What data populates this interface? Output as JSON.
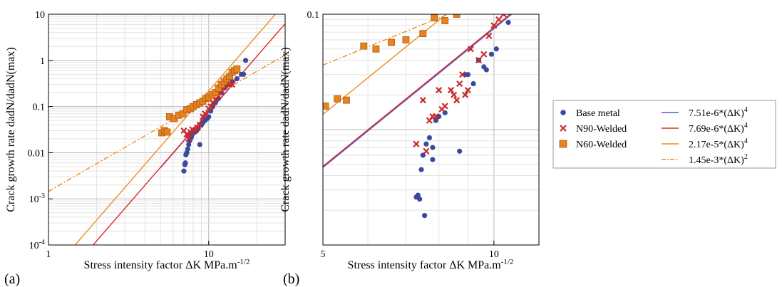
{
  "figure": {
    "panel_a_label": "(a)",
    "panel_b_label": "(b)"
  },
  "legend": {
    "entries": [
      {
        "label": "Base metal",
        "marker": "circle",
        "color": "#3a4aa0"
      },
      {
        "label": "N90-Welded",
        "marker": "x",
        "color": "#c8282a"
      },
      {
        "label": "N60-Welded",
        "marker": "square",
        "color": "#e8821e"
      }
    ],
    "lines": [
      {
        "prefix": "7.51e-6*(ΔK)",
        "exp": "4",
        "color": "#5a5ac8",
        "dash": false
      },
      {
        "prefix": "7.69e-6*(ΔK)",
        "exp": "4",
        "color": "#dc2828",
        "dash": false
      },
      {
        "prefix": "2.17e-5*(ΔK)",
        "exp": "4",
        "color": "#f08c1e",
        "dash": false
      },
      {
        "prefix": "1.45e-3*(ΔK)",
        "exp": "2",
        "color": "#f08c1e",
        "dash": true
      }
    ]
  },
  "chart_data": [
    {
      "type": "scatter",
      "panel": "a",
      "xlabel": "Stress intensity factor ΔK MPa.m",
      "xlabel_sup": "-1/2",
      "ylabel": "Crack growth rate dadN/dadN(max)",
      "x_scale": "log",
      "y_scale": "log",
      "xlim": [
        1,
        30
      ],
      "ylim": [
        0.0001,
        10
      ],
      "x_ticks": [
        {
          "v": 1,
          "label": "1"
        },
        {
          "v": 10,
          "label": "10"
        }
      ],
      "y_ticks": [
        {
          "v": 10,
          "label": "10"
        },
        {
          "v": 1,
          "label": "1"
        },
        {
          "v": 0.1,
          "label": "0.1"
        },
        {
          "v": 0.01,
          "label": "0.01"
        },
        {
          "v": 0.001,
          "label": "10",
          "sup": "-3"
        },
        {
          "v": 0.0001,
          "label": "10",
          "sup": "-4"
        }
      ],
      "grid": true,
      "series": [
        {
          "name": "Base metal",
          "marker": "circle",
          "color": "#3a4aa0",
          "points": [
            [
              7.0,
              0.004
            ],
            [
              7.1,
              0.0055
            ],
            [
              7.15,
              0.006
            ],
            [
              7.2,
              0.009
            ],
            [
              7.3,
              0.01
            ],
            [
              7.4,
              0.012
            ],
            [
              7.5,
              0.015
            ],
            [
              7.6,
              0.018
            ],
            [
              7.7,
              0.02
            ],
            [
              7.8,
              0.022
            ],
            [
              7.9,
              0.025
            ],
            [
              8.2,
              0.028
            ],
            [
              8.4,
              0.03
            ],
            [
              8.6,
              0.033
            ],
            [
              8.8,
              0.015
            ],
            [
              9.0,
              0.04
            ],
            [
              9.2,
              0.045
            ],
            [
              9.5,
              0.05
            ],
            [
              9.8,
              0.055
            ],
            [
              10.0,
              0.06
            ],
            [
              10.3,
              0.08
            ],
            [
              10.6,
              0.1
            ],
            [
              11.0,
              0.12
            ],
            [
              11.5,
              0.15
            ],
            [
              12.0,
              0.2
            ],
            [
              12.5,
              0.25
            ],
            [
              13.0,
              0.3
            ],
            [
              14.0,
              0.35
            ],
            [
              15.0,
              0.4
            ],
            [
              16.0,
              0.5
            ],
            [
              16.5,
              0.5
            ],
            [
              17.0,
              1.0
            ]
          ]
        },
        {
          "name": "N90-Welded",
          "marker": "x",
          "color": "#c8282a",
          "points": [
            [
              7.0,
              0.03
            ],
            [
              7.3,
              0.025
            ],
            [
              7.5,
              0.02
            ],
            [
              7.7,
              0.028
            ],
            [
              7.9,
              0.032
            ],
            [
              8.2,
              0.03
            ],
            [
              8.5,
              0.035
            ],
            [
              8.8,
              0.04
            ],
            [
              9.2,
              0.06
            ],
            [
              9.5,
              0.07
            ],
            [
              10.0,
              0.09
            ],
            [
              10.3,
              0.1
            ],
            [
              10.6,
              0.12
            ],
            [
              11.0,
              0.14
            ],
            [
              11.5,
              0.17
            ],
            [
              12.0,
              0.22
            ],
            [
              12.5,
              0.28
            ],
            [
              13.0,
              0.32
            ],
            [
              13.5,
              0.3
            ],
            [
              14.0,
              0.3
            ]
          ]
        },
        {
          "name": "N60-Welded",
          "marker": "square",
          "color": "#e8821e",
          "points": [
            [
              5.1,
              0.027
            ],
            [
              5.3,
              0.03
            ],
            [
              5.5,
              0.028
            ],
            [
              5.7,
              0.06
            ],
            [
              6.1,
              0.055
            ],
            [
              6.5,
              0.065
            ],
            [
              6.9,
              0.07
            ],
            [
              7.3,
              0.085
            ],
            [
              7.7,
              0.09
            ],
            [
              8.0,
              0.1
            ],
            [
              8.4,
              0.11
            ],
            [
              8.8,
              0.12
            ],
            [
              9.2,
              0.13
            ],
            [
              9.6,
              0.15
            ],
            [
              10.0,
              0.16
            ],
            [
              10.5,
              0.18
            ],
            [
              11.0,
              0.2
            ],
            [
              11.5,
              0.25
            ],
            [
              12.0,
              0.3
            ],
            [
              12.5,
              0.35
            ],
            [
              13.0,
              0.4
            ],
            [
              13.5,
              0.45
            ],
            [
              14.0,
              0.55
            ],
            [
              14.5,
              0.6
            ],
            [
              15.0,
              0.65
            ]
          ]
        }
      ],
      "fits": [
        {
          "name": "7.51e-6*(ΔK)^4",
          "coef": 7.51e-06,
          "exp": 4,
          "color": "#5a5ac8",
          "dash": false,
          "xrange": [
            5.0,
            13.5
          ]
        },
        {
          "name": "7.69e-6*(ΔK)^4",
          "coef": 7.69e-06,
          "exp": 4,
          "color": "#dc2828",
          "dash": false,
          "xrange": [
            1,
            30
          ]
        },
        {
          "name": "2.17e-5*(ΔK)^4",
          "coef": 2.17e-05,
          "exp": 4,
          "color": "#f08c1e",
          "dash": false,
          "xrange": [
            1,
            30
          ]
        },
        {
          "name": "1.45e-3*(ΔK)^2",
          "coef": 0.00145,
          "exp": 2,
          "color": "#f08c1e",
          "dash": true,
          "xrange": [
            1,
            30
          ]
        }
      ]
    },
    {
      "type": "scatter",
      "panel": "b",
      "xlabel": "Stress intensity factor ΔK MPa.m",
      "xlabel_sup": "-1/2",
      "ylabel": "Crack growth rate dadN/dadN(max)",
      "x_scale": "log",
      "y_scale": "log",
      "xlim": [
        5,
        12
      ],
      "ylim": [
        0.001,
        0.1
      ],
      "x_ticks": [
        {
          "v": 5,
          "label": "5"
        },
        {
          "v": 10,
          "label": "10"
        }
      ],
      "y_ticks": [
        {
          "v": 0.1,
          "label": "0.1"
        }
      ],
      "grid": true,
      "series": [
        {
          "name": "Base metal",
          "marker": "circle",
          "color": "#3a4aa0",
          "points": [
            [
              7.3,
              0.0026
            ],
            [
              7.35,
              0.0027
            ],
            [
              7.4,
              0.0025
            ],
            [
              7.45,
              0.0045
            ],
            [
              7.5,
              0.006
            ],
            [
              7.55,
              0.0018
            ],
            [
              7.6,
              0.0075
            ],
            [
              7.7,
              0.0085
            ],
            [
              7.8,
              0.0055
            ],
            [
              7.8,
              0.007
            ],
            [
              7.9,
              0.012
            ],
            [
              8.0,
              0.013
            ],
            [
              8.2,
              0.014
            ],
            [
              8.7,
              0.0065
            ],
            [
              8.9,
              0.03
            ],
            [
              9.0,
              0.03
            ],
            [
              9.2,
              0.025
            ],
            [
              9.4,
              0.04
            ],
            [
              9.6,
              0.035
            ],
            [
              9.7,
              0.033
            ],
            [
              9.9,
              0.045
            ],
            [
              10.1,
              0.05
            ],
            [
              10.6,
              0.085
            ]
          ]
        },
        {
          "name": "N90-Welded",
          "marker": "x",
          "color": "#c8282a",
          "points": [
            [
              7.3,
              0.0075
            ],
            [
              7.5,
              0.018
            ],
            [
              7.6,
              0.0065
            ],
            [
              7.7,
              0.012
            ],
            [
              7.8,
              0.013
            ],
            [
              7.9,
              0.013
            ],
            [
              8.0,
              0.022
            ],
            [
              8.1,
              0.015
            ],
            [
              8.2,
              0.016
            ],
            [
              8.4,
              0.022
            ],
            [
              8.5,
              0.02
            ],
            [
              8.6,
              0.018
            ],
            [
              8.7,
              0.025
            ],
            [
              8.8,
              0.03
            ],
            [
              8.9,
              0.02
            ],
            [
              9.0,
              0.022
            ],
            [
              9.1,
              0.05
            ],
            [
              9.4,
              0.04
            ],
            [
              9.6,
              0.045
            ],
            [
              9.8,
              0.065
            ],
            [
              10.0,
              0.08
            ],
            [
              10.2,
              0.09
            ],
            [
              10.4,
              0.1
            ]
          ]
        },
        {
          "name": "N60-Welded",
          "marker": "square",
          "color": "#e8821e",
          "points": [
            [
              5.05,
              0.016
            ],
            [
              5.3,
              0.0185
            ],
            [
              5.5,
              0.018
            ],
            [
              5.9,
              0.053
            ],
            [
              6.2,
              0.05
            ],
            [
              6.6,
              0.057
            ],
            [
              7.0,
              0.06
            ],
            [
              7.5,
              0.068
            ],
            [
              7.85,
              0.093
            ],
            [
              8.2,
              0.088
            ],
            [
              8.6,
              0.1
            ]
          ]
        }
      ],
      "fits": [
        {
          "name": "7.51e-6*(ΔK)^4",
          "coef": 7.51e-06,
          "exp": 4,
          "color": "#5a5ac8",
          "dash": false,
          "xrange": [
            5,
            12
          ]
        },
        {
          "name": "7.69e-6*(ΔK)^4",
          "coef": 7.69e-06,
          "exp": 4,
          "color": "#dc2828",
          "dash": false,
          "xrange": [
            5,
            12
          ]
        },
        {
          "name": "2.17e-5*(ΔK)^4",
          "coef": 2.17e-05,
          "exp": 4,
          "color": "#f08c1e",
          "dash": false,
          "xrange": [
            5,
            12
          ]
        },
        {
          "name": "1.45e-3*(ΔK)^2",
          "coef": 0.00145,
          "exp": 2,
          "color": "#f08c1e",
          "dash": true,
          "xrange": [
            5,
            12
          ]
        }
      ]
    }
  ]
}
